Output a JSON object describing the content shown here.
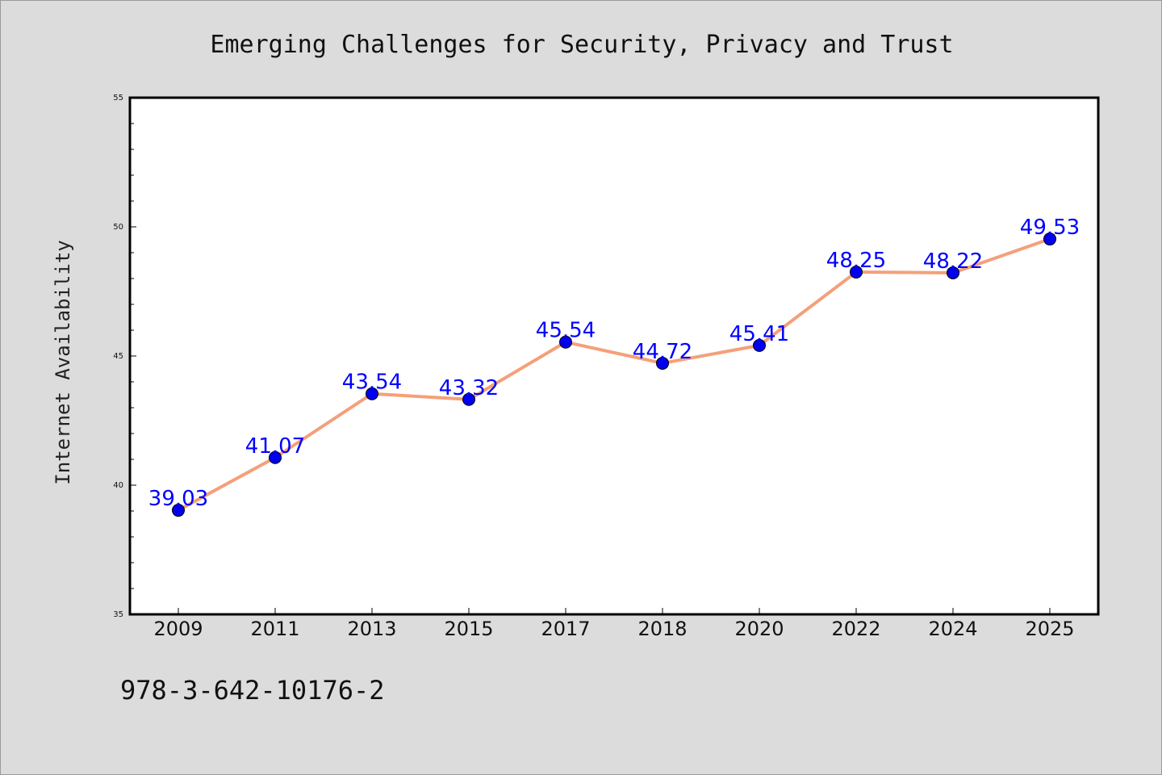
{
  "chart_data": {
    "type": "line",
    "title": "Emerging Challenges for Security, Privacy and Trust",
    "xlabel": "",
    "ylabel": "Internet Availability",
    "categories": [
      "2009",
      "2011",
      "2013",
      "2015",
      "2017",
      "2018",
      "2020",
      "2022",
      "2024",
      "2025"
    ],
    "series": [
      {
        "values": [
          39.03,
          41.07,
          43.54,
          43.32,
          45.54,
          44.72,
          45.41,
          48.25,
          48.22,
          49.53
        ],
        "labels": [
          "39.03",
          "41.07",
          "43.54",
          "43.32",
          "45.54",
          "44.72",
          "45.41",
          "48.25",
          "48.22",
          "49.53"
        ],
        "line_color": "#f4a07a",
        "marker_color": "#0000ee",
        "label_color": "#0000ff"
      }
    ],
    "ylim": [
      35,
      55
    ],
    "yticks": [
      "35",
      "40",
      "45",
      "50",
      "55"
    ],
    "grid": false,
    "legend": "none"
  },
  "footnote": "978-3-642-10176-2",
  "colors": {
    "page_background": "#dcdcdc",
    "plot_background": "#ffffff",
    "frame": "#000000"
  }
}
